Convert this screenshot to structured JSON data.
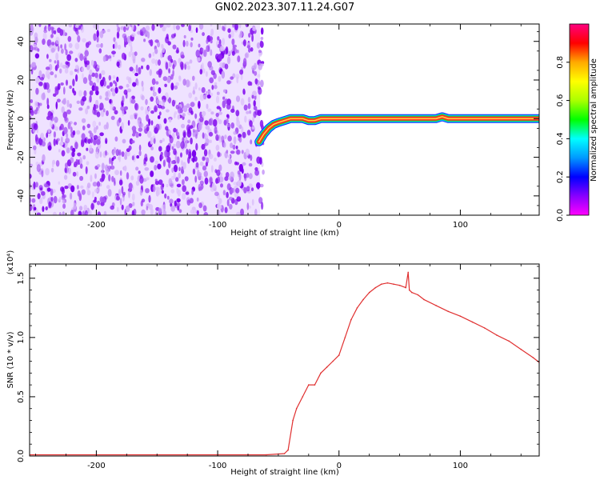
{
  "figure": {
    "title": "GN02.2023.307.11.24.G07"
  },
  "chart_data": [
    {
      "type": "heatmap",
      "xlabel": "Height of straight line (km)",
      "ylabel": "Frequency (Hz)",
      "xlim": [
        -255,
        165
      ],
      "ylim": [
        -50,
        49
      ],
      "xticks": [
        -200,
        -100,
        0,
        100
      ],
      "yticks": [
        -40,
        -20,
        0,
        20,
        40
      ],
      "grid": false,
      "noise_region_x": [
        -255,
        -65
      ],
      "signal_trace": {
        "x": [
          -66,
          -62,
          -58,
          -54,
          -50,
          -45,
          -40,
          -35,
          -30,
          -25,
          -20,
          -15,
          -10,
          -5,
          0,
          20,
          40,
          60,
          80,
          85,
          90,
          110,
          130,
          150,
          165
        ],
        "y": [
          -12,
          -8,
          -5,
          -3,
          -2,
          -1,
          0,
          0,
          0,
          -1,
          -1,
          0,
          0,
          0,
          0,
          0,
          0,
          0,
          0,
          1,
          0,
          0,
          0,
          0,
          0
        ]
      },
      "colorbar": {
        "label": "Normalized spectral amplitude",
        "range": [
          0.0,
          1.0
        ],
        "ticks": [
          0.0,
          0.2,
          0.4,
          0.6,
          0.8
        ],
        "colormap": [
          "#ff00ff",
          "#8800ff",
          "#0000ff",
          "#0099ff",
          "#00ffff",
          "#00ff00",
          "#aaff00",
          "#ffff00",
          "#ffaa00",
          "#ff0000",
          "#ff0080"
        ]
      }
    },
    {
      "type": "line",
      "xlabel": "Height of straight line (km)",
      "ylabel": "SNR (10 * v/v)",
      "y_multiplier": "(x10⁴)",
      "xlim": [
        -255,
        165
      ],
      "ylim": [
        0,
        1.62
      ],
      "xticks": [
        -200,
        -100,
        0,
        100
      ],
      "yticks": [
        0.0,
        0.5,
        1.0,
        1.5
      ],
      "grid": false,
      "series": [
        {
          "color": "#e03030",
          "x": [
            -255,
            -200,
            -150,
            -100,
            -60,
            -45,
            -42,
            -38,
            -35,
            -30,
            -25,
            -20,
            -15,
            -10,
            -5,
            0,
            5,
            10,
            15,
            20,
            25,
            30,
            35,
            40,
            45,
            50,
            55,
            57,
            58,
            60,
            65,
            70,
            80,
            90,
            100,
            110,
            120,
            130,
            140,
            150,
            160,
            165
          ],
          "y": [
            0.01,
            0.01,
            0.01,
            0.01,
            0.01,
            0.02,
            0.05,
            0.3,
            0.4,
            0.5,
            0.6,
            0.6,
            0.7,
            0.75,
            0.8,
            0.85,
            1.0,
            1.15,
            1.25,
            1.32,
            1.38,
            1.42,
            1.45,
            1.46,
            1.45,
            1.44,
            1.42,
            1.55,
            1.4,
            1.38,
            1.36,
            1.32,
            1.27,
            1.22,
            1.18,
            1.13,
            1.08,
            1.02,
            0.97,
            0.9,
            0.83,
            0.79
          ]
        }
      ]
    }
  ]
}
